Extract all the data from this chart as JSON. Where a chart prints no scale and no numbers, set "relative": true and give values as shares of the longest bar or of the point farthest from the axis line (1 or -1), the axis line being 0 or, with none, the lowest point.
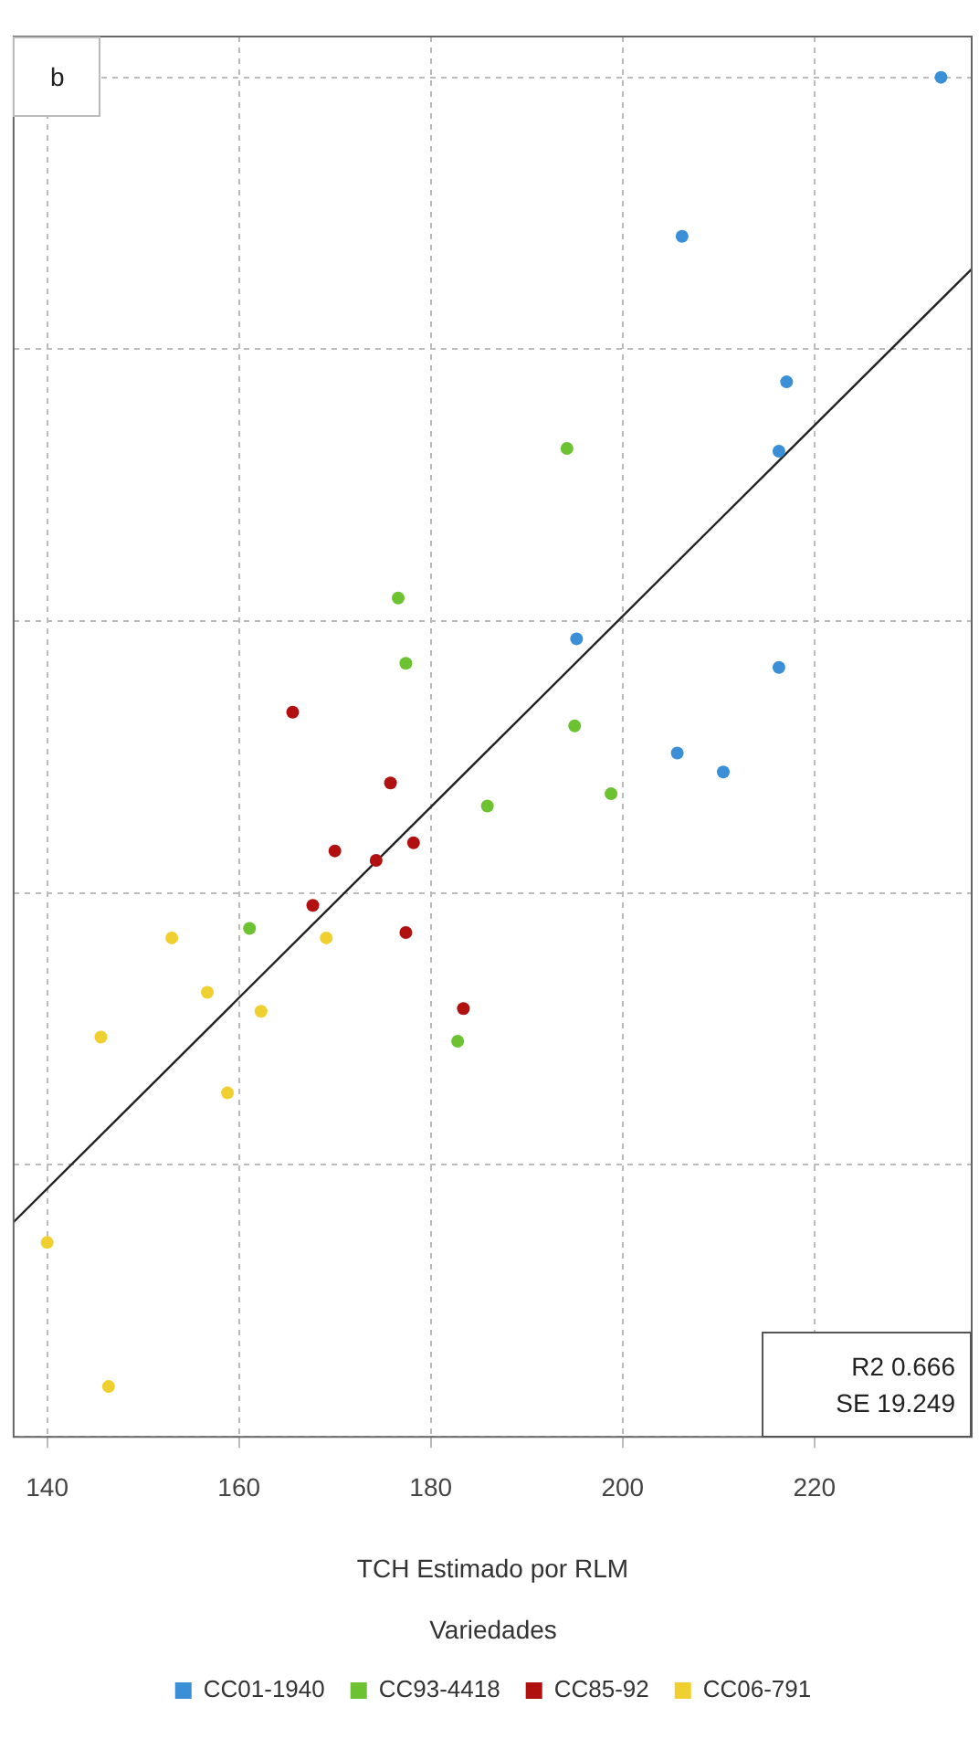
{
  "chart_data": {
    "type": "scatter",
    "xlabel": "TCH Estimado por RLM",
    "legend_title": "Variedades",
    "relative": true,
    "xlim": [
      136.5,
      236.4
    ],
    "xticks": [
      140,
      160,
      180,
      200,
      220
    ],
    "grid": true,
    "legend": "bottom",
    "marker": "circle",
    "annotations": [
      "b",
      "R2 0.666",
      "SE 19.249"
    ],
    "series": [
      {
        "name": "CC01-1940",
        "color": "#3a8fd6",
        "x": [
          233.2,
          206.2,
          217.1,
          216.3,
          195.2,
          216.3,
          205.7,
          210.5
        ],
        "values": [
          1.0,
          0.883,
          0.776,
          0.725,
          0.587,
          0.566,
          0.503,
          0.489
        ]
      },
      {
        "name": "CC93-4418",
        "color": "#6cc230",
        "x": [
          194.2,
          176.6,
          177.4,
          195.0,
          198.8,
          185.9,
          161.1,
          182.8
        ],
        "values": [
          0.727,
          0.617,
          0.569,
          0.523,
          0.473,
          0.464,
          0.374,
          0.291
        ]
      },
      {
        "name": "CC85-92",
        "color": "#b01010",
        "x": [
          165.6,
          175.8,
          170.0,
          174.3,
          178.2,
          167.7,
          177.4,
          183.4
        ],
        "values": [
          0.533,
          0.481,
          0.431,
          0.424,
          0.437,
          0.391,
          0.371,
          0.315
        ]
      },
      {
        "name": "CC06-791",
        "color": "#f0d030",
        "x": [
          153.0,
          169.1,
          156.7,
          162.3,
          145.6,
          158.8,
          140.0,
          146.4
        ],
        "values": [
          0.367,
          0.367,
          0.327,
          0.313,
          0.294,
          0.253,
          0.143,
          0.037
        ]
      },
      {
        "type": "line",
        "color": "#222222",
        "x": [
          136.5,
          236.4
        ],
        "values": [
          0.158,
          0.859
        ],
        "marker": "none"
      }
    ]
  }
}
